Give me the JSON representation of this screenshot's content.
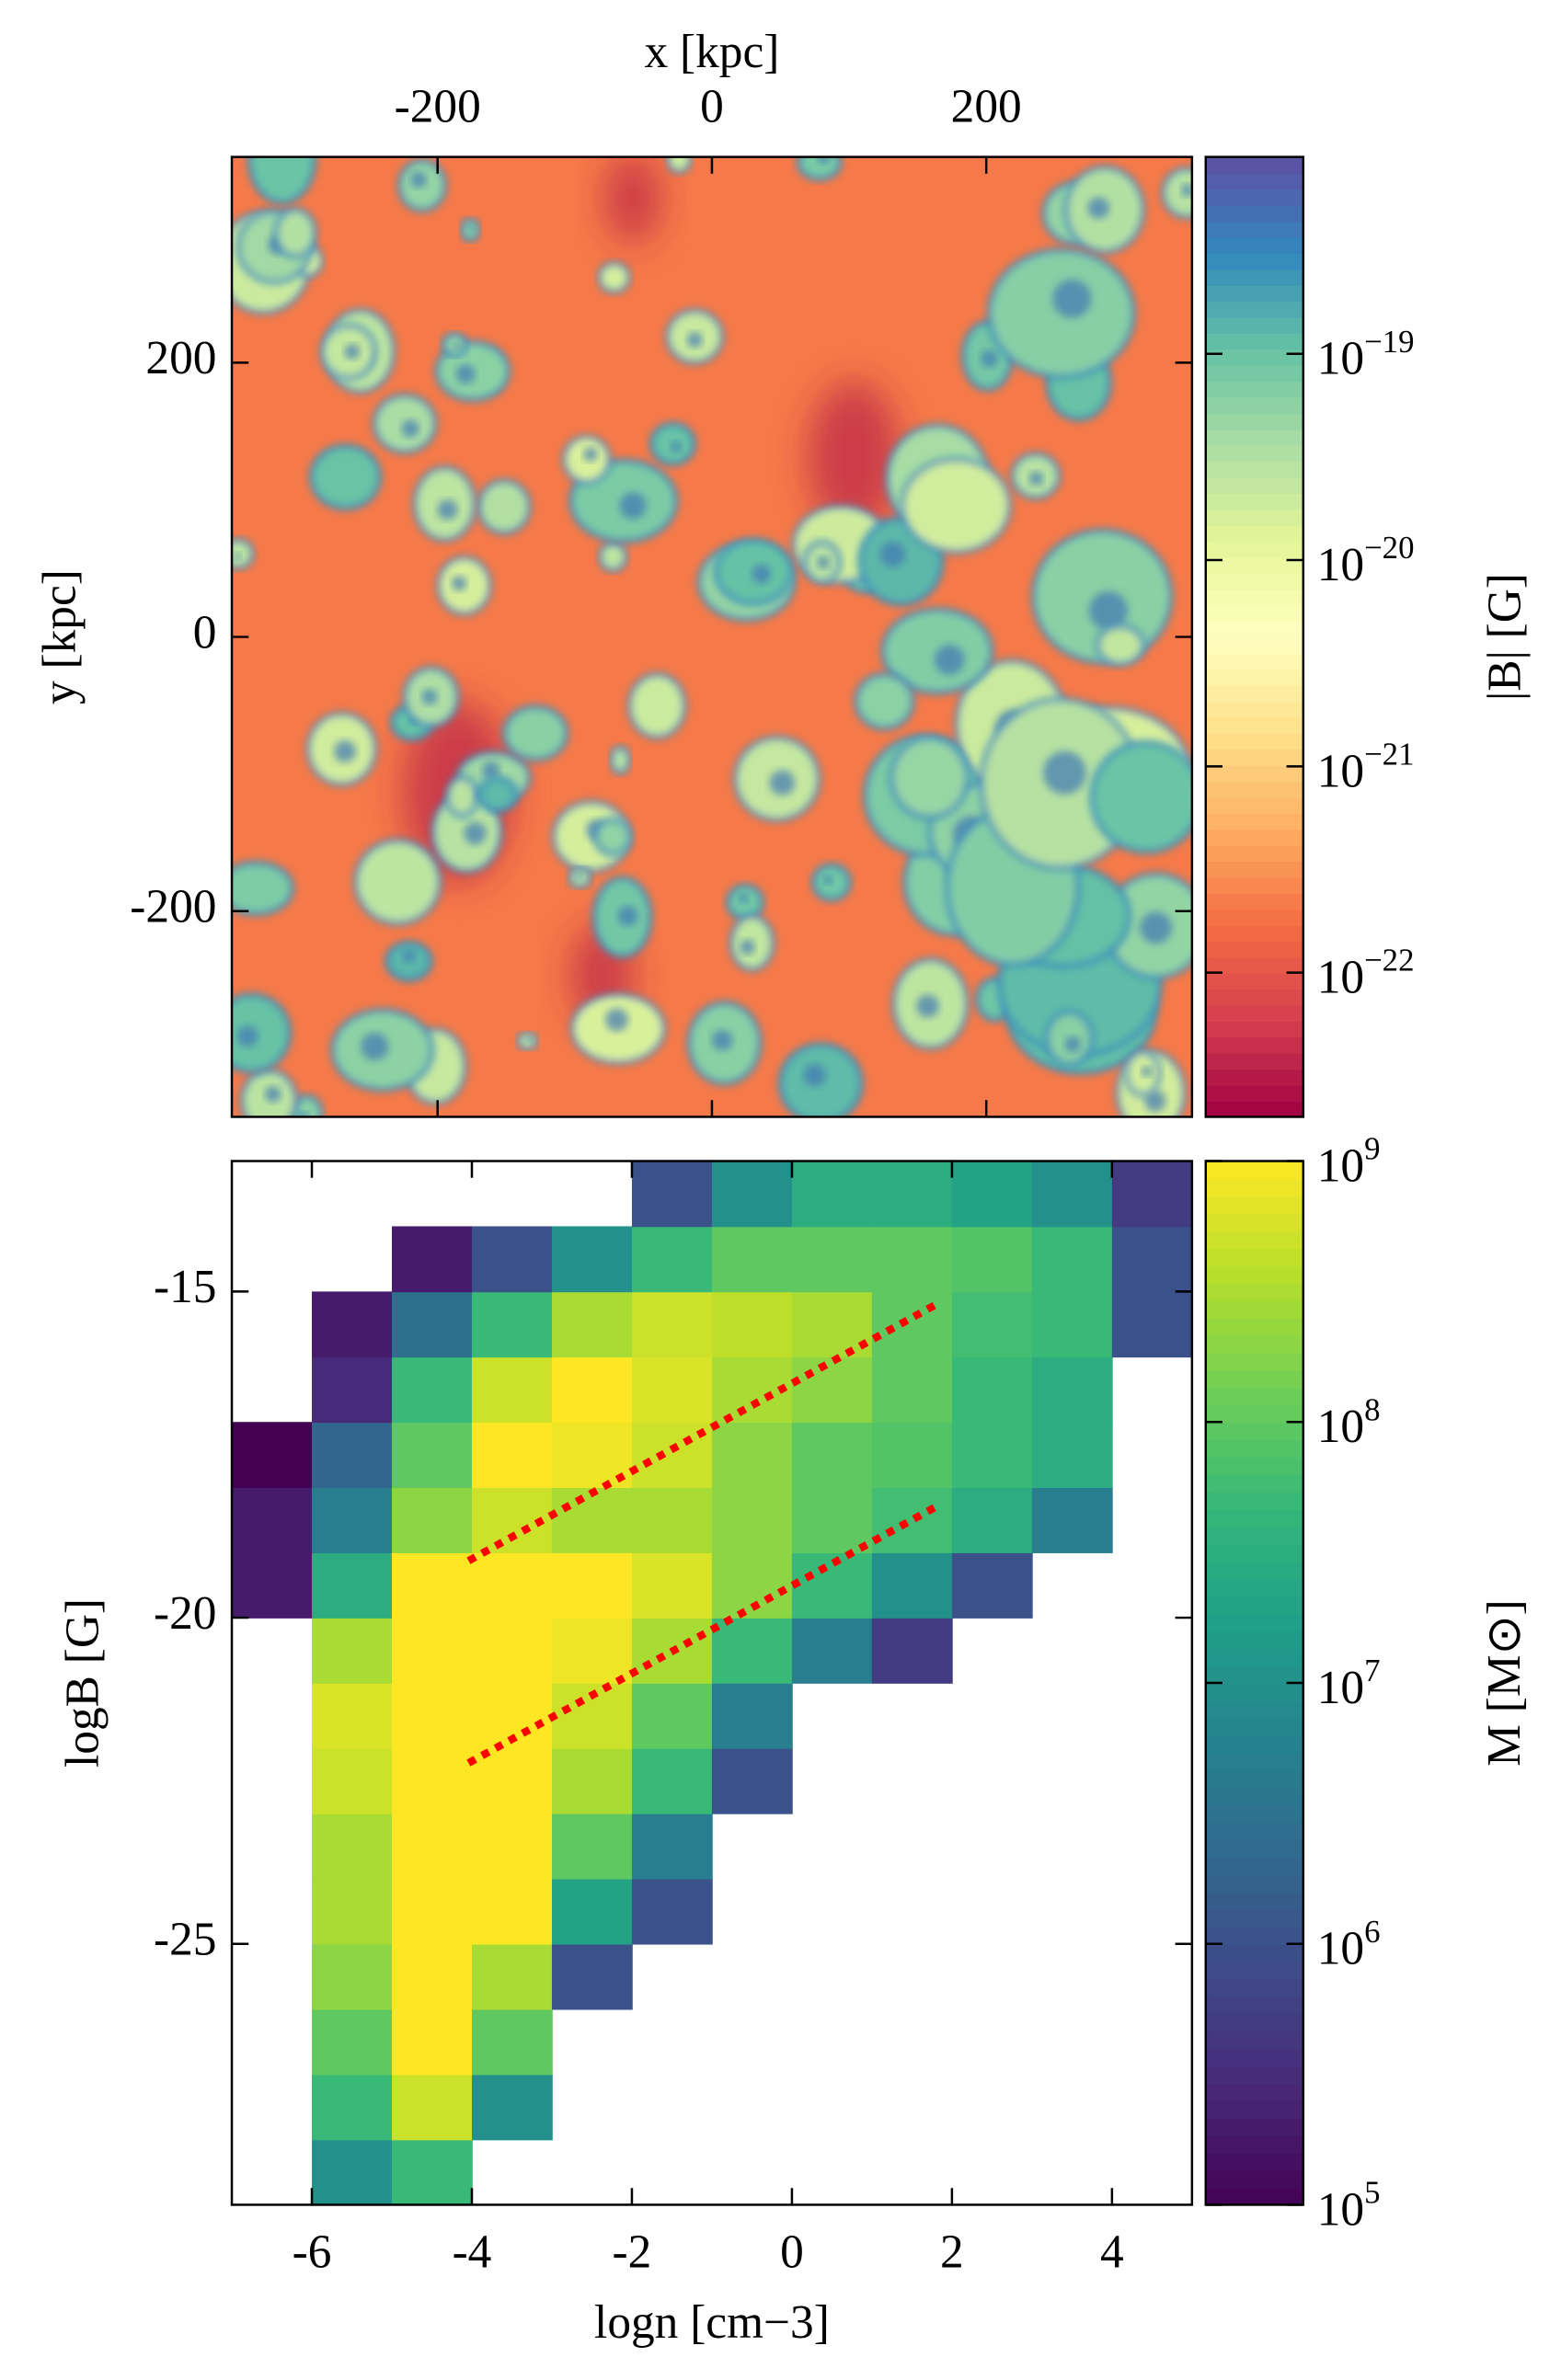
{
  "chart_data": [
    {
      "type": "image",
      "xlabel": "x [kpc]",
      "ylabel": "y [kpc]",
      "xlim": [
        -350,
        350
      ],
      "ylim": [
        -350,
        350
      ],
      "xticks": [
        -200,
        0,
        200
      ],
      "yticks": [
        -200,
        0,
        200
      ],
      "xaxis_position": "top",
      "colormap": "Spectral",
      "colorbar_label": "|B| [G]",
      "clim": [
        2e-23,
        9e-19
      ],
      "colorbar_scale": "log",
      "colorbar_ticks": [
        {
          "value": 1e-22,
          "label": "10",
          "exponent": "−22"
        },
        {
          "value": 1e-21,
          "label": "10",
          "exponent": "−21"
        },
        {
          "value": 1e-20,
          "label": "10",
          "exponent": "−20"
        },
        {
          "value": 1e-19,
          "label": "10",
          "exponent": "−19"
        }
      ]
    },
    {
      "type": "hist2d",
      "xlabel": "logn [cm−3]",
      "ylabel": "logB [G]",
      "xlim": [
        -7,
        5
      ],
      "ylim": [
        -29,
        -13
      ],
      "xticks": [
        -6,
        -4,
        -2,
        0,
        2,
        4
      ],
      "yticks": [
        -25,
        -20,
        -15
      ],
      "xaxis_position": "bottom",
      "colormap": "viridis",
      "colorbar_label": "M [M⊙]",
      "clim": [
        100000,
        1000000000
      ],
      "colorbar_scale": "log",
      "colorbar_ticks": [
        {
          "value": 100000,
          "label": "10",
          "exponent": "5"
        },
        {
          "value": 1000000,
          "label": "10",
          "exponent": "6"
        },
        {
          "value": 10000000,
          "label": "10",
          "exponent": "7"
        },
        {
          "value": 100000000,
          "label": "10",
          "exponent": "8"
        },
        {
          "value": 1000000000,
          "label": "10",
          "exponent": "9"
        }
      ],
      "xbins": [
        -7,
        -6,
        -5,
        -4,
        -3,
        -2,
        -1,
        0,
        1,
        2,
        3,
        4,
        5
      ],
      "ybins": [
        -29,
        -28,
        -27,
        -26,
        -25,
        -24,
        -23,
        -22,
        -21,
        -20,
        -19,
        -18,
        -17,
        -16,
        -15,
        -14,
        -13
      ],
      "values": [
        [
          null,
          10000000.0,
          50000000.0,
          null,
          null,
          null,
          null,
          null,
          null,
          null,
          null,
          null
        ],
        [
          null,
          50000000.0,
          500000000.0,
          10000000.0,
          null,
          null,
          null,
          null,
          null,
          null,
          null,
          null
        ],
        [
          null,
          100000000.0,
          1000000000.0,
          100000000.0,
          null,
          null,
          null,
          null,
          null,
          null,
          null,
          null
        ],
        [
          null,
          200000000.0,
          1000000000.0,
          300000000.0,
          1000000.0,
          null,
          null,
          null,
          null,
          null,
          null,
          null
        ],
        [
          null,
          300000000.0,
          1000000000.0,
          1000000000.0,
          20000000.0,
          1000000.0,
          null,
          null,
          null,
          null,
          null,
          null
        ],
        [
          null,
          300000000.0,
          1000000000.0,
          1000000000.0,
          100000000.0,
          5000000.0,
          null,
          null,
          null,
          null,
          null,
          null
        ],
        [
          null,
          500000000.0,
          1000000000.0,
          1000000000.0,
          300000000.0,
          50000000.0,
          1000000.0,
          null,
          null,
          null,
          null,
          null
        ],
        [
          null,
          600000000.0,
          1000000000.0,
          1000000000.0,
          500000000.0,
          100000000.0,
          5000000.0,
          null,
          null,
          null,
          null,
          null
        ],
        [
          null,
          300000000.0,
          1000000000.0,
          1000000000.0,
          800000000.0,
          300000000.0,
          50000000.0,
          5000000.0,
          500000.0,
          null,
          null,
          null
        ],
        [
          200000.0,
          30000000.0,
          1000000000.0,
          1000000000.0,
          1000000000.0,
          600000000.0,
          200000000.0,
          50000000.0,
          10000000.0,
          1000000.0,
          null,
          null
        ],
        [
          200000.0,
          5000000.0,
          200000000.0,
          500000000.0,
          300000000.0,
          300000000.0,
          200000000.0,
          100000000.0,
          60000000.0,
          30000000.0,
          5000000.0,
          null
        ],
        [
          100000.0,
          2000000.0,
          100000000.0,
          1000000000.0,
          800000000.0,
          500000000.0,
          200000000.0,
          100000000.0,
          80000000.0,
          50000000.0,
          30000000.0,
          null
        ],
        [
          null,
          300000.0,
          50000000.0,
          500000000.0,
          1000000000.0,
          600000000.0,
          300000000.0,
          200000000.0,
          100000000.0,
          50000000.0,
          30000000.0,
          null
        ],
        [
          null,
          200000.0,
          3000000.0,
          50000000.0,
          300000000.0,
          500000000.0,
          400000000.0,
          300000000.0,
          100000000.0,
          60000000.0,
          50000000.0,
          1000000.0
        ],
        [
          null,
          null,
          200000.0,
          1000000.0,
          10000000.0,
          50000000.0,
          100000000.0,
          100000000.0,
          100000000.0,
          80000000.0,
          50000000.0,
          1000000.0
        ],
        [
          null,
          null,
          null,
          null,
          null,
          1000000.0,
          10000000.0,
          30000000.0,
          30000000.0,
          20000000.0,
          10000000.0,
          500000.0
        ]
      ],
      "series": [
        {
          "color": "#ff0000",
          "x": [
            -4,
            1.8
          ],
          "y": [
            -19.1,
            -15.2
          ]
        },
        {
          "color": "#ff0000",
          "x": [
            -4,
            1.8
          ],
          "y": [
            -22.2,
            -18.3
          ]
        }
      ]
    }
  ]
}
